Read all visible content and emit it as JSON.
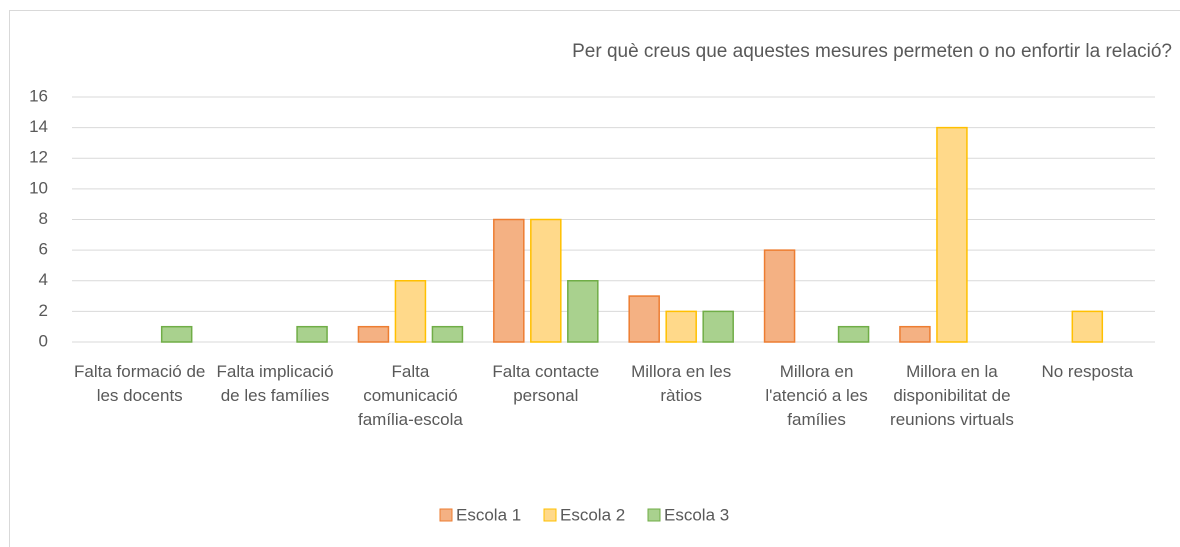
{
  "chart_data": {
    "type": "bar",
    "title": "Per què creus que aquestes mesures permeten o no enfortir la relació?",
    "categories": [
      "Falta formació de les docents",
      "Falta implicació de les famílies",
      "Falta comunicació família-escola",
      "Falta contacte personal",
      "Millora en les ràtios",
      "Millora en l'atenció a les famílies",
      "Millora en la disponibilitat de reunions virtuals",
      "No resposta"
    ],
    "series": [
      {
        "name": "Escola 1",
        "color": "#f4b183",
        "border_color": "#ed7d31",
        "values": [
          0,
          0,
          1,
          8,
          3,
          6,
          1,
          0
        ]
      },
      {
        "name": "Escola 2",
        "color": "#ffd98a",
        "border_color": "#ffc000",
        "values": [
          0,
          0,
          4,
          8,
          2,
          0,
          14,
          2
        ]
      },
      {
        "name": "Escola 3",
        "color": "#a9d18e",
        "border_color": "#70ad47",
        "values": [
          1,
          1,
          1,
          4,
          2,
          1,
          0,
          0
        ]
      }
    ],
    "ylim": [
      0,
      16
    ],
    "yticks": [
      0,
      2,
      4,
      6,
      8,
      10,
      12,
      14,
      16
    ],
    "grid": true,
    "legend": "bottom"
  }
}
